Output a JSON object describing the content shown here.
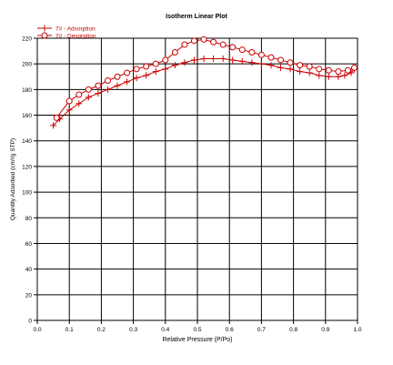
{
  "chart_data": {
    "type": "line",
    "title": "Isotherm Linear Plot",
    "xlabel": "Relative Pressure (P/Po)",
    "ylabel": "Quantity Adsorbed (cm³/g STP)",
    "xlim": [
      0,
      1.0
    ],
    "ylim": [
      0,
      220
    ],
    "xticks": [
      0,
      0.1,
      0.2,
      0.3,
      0.4,
      0.5,
      0.6,
      0.7,
      0.8,
      0.9,
      1.0
    ],
    "xtick_labels": [
      "0.0",
      "0.1",
      "0.2",
      "0.3",
      "0.4",
      "0.5",
      "0.6",
      "0.7",
      "0.8",
      "0.9",
      "1.0"
    ],
    "yticks": [
      0,
      20,
      40,
      60,
      80,
      100,
      120,
      140,
      160,
      180,
      200,
      220
    ],
    "ytick_labels": [
      "0",
      "20",
      "40",
      "60",
      "80",
      "100",
      "120",
      "140",
      "160",
      "180",
      "200",
      "220"
    ],
    "grid": true,
    "legend_position": "top-left",
    "color": "#cc0000",
    "series": [
      {
        "name": "7# - Adsorption",
        "marker": "plus",
        "x": [
          0.05,
          0.07,
          0.1,
          0.13,
          0.16,
          0.19,
          0.22,
          0.25,
          0.28,
          0.31,
          0.34,
          0.37,
          0.4,
          0.43,
          0.46,
          0.49,
          0.52,
          0.55,
          0.58,
          0.61,
          0.64,
          0.67,
          0.7,
          0.73,
          0.76,
          0.79,
          0.82,
          0.85,
          0.88,
          0.91,
          0.94,
          0.96,
          0.98,
          0.99
        ],
        "y": [
          152,
          157,
          164,
          169,
          174,
          177,
          180,
          183,
          186,
          189,
          191,
          194,
          196,
          199,
          201,
          203,
          204,
          204,
          204,
          203,
          202,
          201,
          200,
          199,
          197,
          196,
          194,
          193,
          191,
          190,
          190,
          191,
          193,
          196
        ]
      },
      {
        "name": "7# - Desorption",
        "marker": "circle",
        "x": [
          0.99,
          0.97,
          0.94,
          0.91,
          0.88,
          0.85,
          0.82,
          0.79,
          0.76,
          0.73,
          0.7,
          0.67,
          0.64,
          0.61,
          0.58,
          0.55,
          0.52,
          0.49,
          0.46,
          0.43,
          0.4,
          0.37,
          0.34,
          0.31,
          0.28,
          0.25,
          0.22,
          0.19,
          0.16,
          0.13,
          0.1,
          0.06
        ],
        "y": [
          197,
          195,
          194,
          195,
          196,
          198,
          199,
          201,
          203,
          205,
          207,
          209,
          211,
          213,
          215,
          217,
          219,
          218,
          215,
          209,
          203,
          200,
          198,
          196,
          193,
          190,
          187,
          183,
          180,
          176,
          171,
          158
        ]
      }
    ]
  }
}
